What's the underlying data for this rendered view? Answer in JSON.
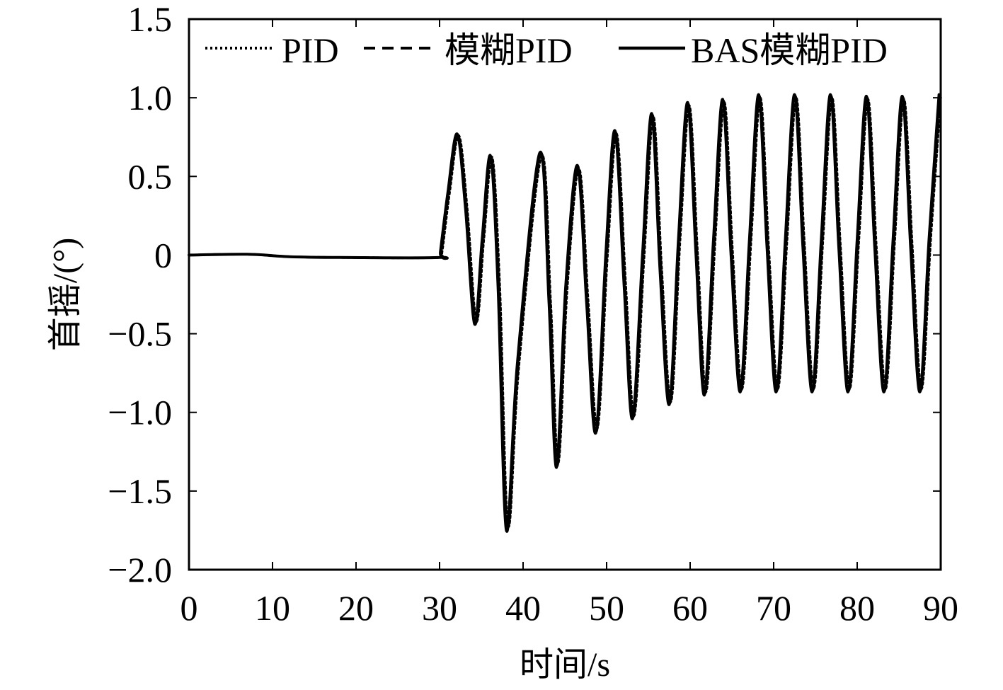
{
  "chart_data": {
    "type": "line",
    "title": "",
    "xlabel": "时间/s",
    "ylabel": "首摇/(°)",
    "xlim": [
      0,
      90
    ],
    "ylim": [
      -2.0,
      1.5
    ],
    "xticks": [
      0,
      10,
      20,
      30,
      40,
      50,
      60,
      70,
      80,
      90
    ],
    "xtick_labels": [
      "0",
      "10",
      "20",
      "30",
      "40",
      "50",
      "60",
      "70",
      "80",
      "90"
    ],
    "yticks": [
      1.5,
      1.0,
      0.5,
      0,
      -0.5,
      -1.0,
      -1.5,
      -2.0
    ],
    "ytick_labels": [
      "1.5",
      "1.0",
      "0.5",
      "0",
      "−0.5",
      "−1.0",
      "−1.5",
      "−2.0"
    ],
    "grid": false,
    "legend_position": "top",
    "series": [
      {
        "name": "PID",
        "style": "dotted",
        "color": "#000000",
        "points": [
          [
            0,
            0
          ],
          [
            7,
            0.005
          ],
          [
            12,
            -0.01
          ],
          [
            18,
            -0.015
          ],
          [
            30,
            -0.015
          ],
          [
            30.3,
            0.02
          ],
          [
            31.2,
            0.4
          ],
          [
            32.3,
            0.76
          ],
          [
            33.3,
            0.3
          ],
          [
            34.4,
            -0.42
          ],
          [
            35.3,
            0.1
          ],
          [
            36.3,
            0.62
          ],
          [
            37.2,
            -0.2
          ],
          [
            38.2,
            -1.72
          ],
          [
            39.5,
            -0.7
          ],
          [
            42.2,
            0.63
          ],
          [
            43.3,
            -0.3
          ],
          [
            44.2,
            -1.32
          ],
          [
            45.3,
            -0.2
          ],
          [
            46.7,
            0.55
          ],
          [
            47.8,
            -0.3
          ],
          [
            48.9,
            -1.1
          ],
          [
            50.1,
            0.0
          ],
          [
            51.2,
            0.77
          ],
          [
            52.3,
            -0.2
          ],
          [
            53.3,
            -1.02
          ],
          [
            54.5,
            0.0
          ],
          [
            55.6,
            0.88
          ],
          [
            56.6,
            -0.1
          ],
          [
            57.7,
            -0.93
          ],
          [
            58.8,
            0.1
          ],
          [
            59.9,
            0.95
          ],
          [
            60.9,
            0.0
          ],
          [
            61.9,
            -0.87
          ],
          [
            63.0,
            0.1
          ],
          [
            64.1,
            0.97
          ],
          [
            65.1,
            0.0
          ],
          [
            66.2,
            -0.85
          ],
          [
            67.3,
            0.1
          ],
          [
            68.4,
            1.0
          ],
          [
            69.4,
            0.05
          ],
          [
            70.5,
            -0.85
          ],
          [
            71.6,
            0.1
          ],
          [
            72.7,
            1.0
          ],
          [
            73.7,
            0.05
          ],
          [
            74.8,
            -0.85
          ],
          [
            75.9,
            0.1
          ],
          [
            77.0,
            1.0
          ],
          [
            78.0,
            0.05
          ],
          [
            79.1,
            -0.85
          ],
          [
            80.2,
            0.1
          ],
          [
            81.3,
            0.99
          ],
          [
            82.3,
            0.05
          ],
          [
            83.4,
            -0.85
          ],
          [
            84.5,
            0.1
          ],
          [
            85.6,
            0.99
          ],
          [
            86.6,
            0.05
          ],
          [
            87.7,
            -0.85
          ],
          [
            88.8,
            0.1
          ],
          [
            90.0,
            1.0
          ]
        ]
      },
      {
        "name": "模糊PID",
        "style": "dashed",
        "color": "#000000",
        "points": [
          [
            0,
            0
          ],
          [
            7,
            0.005
          ],
          [
            12,
            -0.01
          ],
          [
            18,
            -0.015
          ],
          [
            30,
            -0.015
          ],
          [
            30.2,
            0.02
          ],
          [
            31.1,
            0.4
          ],
          [
            32.2,
            0.76
          ],
          [
            33.2,
            0.3
          ],
          [
            34.3,
            -0.43
          ],
          [
            35.2,
            0.1
          ],
          [
            36.2,
            0.62
          ],
          [
            37.1,
            -0.2
          ],
          [
            38.1,
            -1.74
          ],
          [
            39.4,
            -0.7
          ],
          [
            42.1,
            0.64
          ],
          [
            43.2,
            -0.3
          ],
          [
            44.1,
            -1.34
          ],
          [
            45.2,
            -0.2
          ],
          [
            46.6,
            0.56
          ],
          [
            47.7,
            -0.3
          ],
          [
            48.8,
            -1.12
          ],
          [
            50.0,
            0.0
          ],
          [
            51.1,
            0.78
          ],
          [
            52.2,
            -0.2
          ],
          [
            53.2,
            -1.03
          ],
          [
            54.4,
            0.0
          ],
          [
            55.5,
            0.89
          ],
          [
            56.5,
            -0.1
          ],
          [
            57.6,
            -0.94
          ],
          [
            58.7,
            0.1
          ],
          [
            59.8,
            0.96
          ],
          [
            60.8,
            0.0
          ],
          [
            61.8,
            -0.88
          ],
          [
            62.9,
            0.1
          ],
          [
            64.0,
            0.98
          ],
          [
            65.0,
            0.0
          ],
          [
            66.1,
            -0.86
          ],
          [
            67.2,
            0.1
          ],
          [
            68.3,
            1.01
          ],
          [
            69.3,
            0.05
          ],
          [
            70.4,
            -0.86
          ],
          [
            71.5,
            0.1
          ],
          [
            72.6,
            1.01
          ],
          [
            73.6,
            0.05
          ],
          [
            74.7,
            -0.86
          ],
          [
            75.8,
            0.1
          ],
          [
            76.9,
            1.01
          ],
          [
            77.9,
            0.05
          ],
          [
            79.0,
            -0.86
          ],
          [
            80.1,
            0.1
          ],
          [
            81.2,
            1.0
          ],
          [
            82.2,
            0.05
          ],
          [
            83.3,
            -0.86
          ],
          [
            84.4,
            0.1
          ],
          [
            85.5,
            1.0
          ],
          [
            86.5,
            0.05
          ],
          [
            87.6,
            -0.86
          ],
          [
            88.7,
            0.1
          ],
          [
            89.9,
            1.01
          ]
        ]
      },
      {
        "name": "BAS模糊PID",
        "style": "solid",
        "color": "#000000",
        "points": [
          [
            0,
            0
          ],
          [
            7,
            0.005
          ],
          [
            12,
            -0.01
          ],
          [
            18,
            -0.015
          ],
          [
            30,
            -0.015
          ],
          [
            30.1,
            0.02
          ],
          [
            31.0,
            0.4
          ],
          [
            32.1,
            0.77
          ],
          [
            33.1,
            0.3
          ],
          [
            34.2,
            -0.44
          ],
          [
            35.1,
            0.1
          ],
          [
            36.1,
            0.63
          ],
          [
            37.0,
            -0.2
          ],
          [
            38.0,
            -1.75
          ],
          [
            39.3,
            -0.7
          ],
          [
            42.0,
            0.65
          ],
          [
            43.1,
            -0.3
          ],
          [
            44.0,
            -1.35
          ],
          [
            45.1,
            -0.2
          ],
          [
            46.5,
            0.57
          ],
          [
            47.6,
            -0.3
          ],
          [
            48.7,
            -1.13
          ],
          [
            49.9,
            0.0
          ],
          [
            51.0,
            0.79
          ],
          [
            52.1,
            -0.2
          ],
          [
            53.1,
            -1.04
          ],
          [
            54.3,
            0.0
          ],
          [
            55.4,
            0.9
          ],
          [
            56.4,
            -0.1
          ],
          [
            57.5,
            -0.95
          ],
          [
            58.6,
            0.1
          ],
          [
            59.7,
            0.97
          ],
          [
            60.7,
            0.0
          ],
          [
            61.7,
            -0.89
          ],
          [
            62.8,
            0.1
          ],
          [
            63.9,
            0.99
          ],
          [
            64.9,
            0.0
          ],
          [
            66.0,
            -0.87
          ],
          [
            67.1,
            0.1
          ],
          [
            68.2,
            1.02
          ],
          [
            69.2,
            0.05
          ],
          [
            70.3,
            -0.87
          ],
          [
            71.4,
            0.1
          ],
          [
            72.5,
            1.02
          ],
          [
            73.5,
            0.05
          ],
          [
            74.6,
            -0.87
          ],
          [
            75.7,
            0.1
          ],
          [
            76.8,
            1.02
          ],
          [
            77.8,
            0.05
          ],
          [
            78.9,
            -0.87
          ],
          [
            80.0,
            0.1
          ],
          [
            81.1,
            1.01
          ],
          [
            82.1,
            0.05
          ],
          [
            83.2,
            -0.87
          ],
          [
            84.3,
            0.1
          ],
          [
            85.4,
            1.01
          ],
          [
            86.4,
            0.05
          ],
          [
            87.5,
            -0.87
          ],
          [
            88.6,
            0.1
          ],
          [
            89.8,
            1.02
          ]
        ]
      }
    ]
  }
}
